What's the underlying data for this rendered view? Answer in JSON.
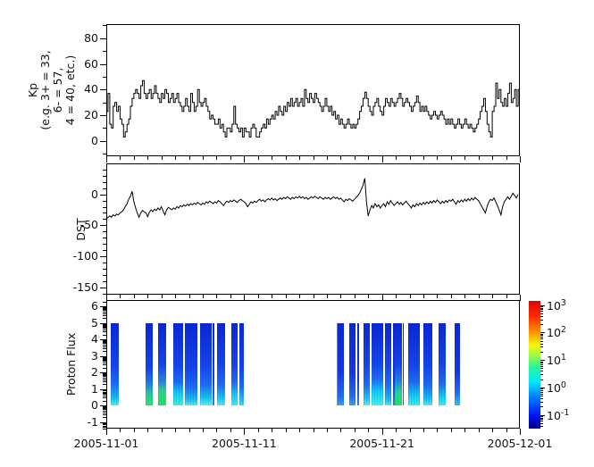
{
  "xaxis": {
    "tick_days": [
      0,
      10,
      20,
      30
    ],
    "tick_labels": [
      "2005-11-01",
      "2005-11-11",
      "2005-11-21",
      "2005-12-01"
    ]
  },
  "colorbar": {
    "scale": "log",
    "base": "10",
    "tick_exponents": [
      3,
      2,
      1,
      0,
      -1
    ],
    "lim_exponents": [
      -1.5,
      3.15
    ],
    "gradient": [
      [
        "0%",
        "#000088"
      ],
      [
        "10%",
        "#0013f0"
      ],
      [
        "24%",
        "#0078ff"
      ],
      [
        "37%",
        "#00eaff"
      ],
      [
        "48%",
        "#2cf598"
      ],
      [
        "57%",
        "#97fb47"
      ],
      [
        "65%",
        "#f2f907"
      ],
      [
        "76%",
        "#ff9000"
      ],
      [
        "88%",
        "#ff2a00"
      ],
      [
        "100%",
        "#e00000"
      ]
    ]
  },
  "chart_data": [
    {
      "id": "kp",
      "type": "step",
      "ylabel": "Kp\n(e.g. 3+ = 33,\n6- = 57,\n4 = 40, etc.)",
      "ylim": [
        -12,
        91
      ],
      "yticks": [
        0,
        20,
        40,
        60,
        80
      ],
      "yminor_step": 10,
      "xlim_days": [
        0,
        30
      ],
      "dt_days": 0.125,
      "values": [
        23,
        37,
        13,
        10,
        27,
        30,
        23,
        27,
        17,
        13,
        3,
        7,
        13,
        17,
        27,
        33,
        37,
        40,
        37,
        33,
        43,
        47,
        37,
        33,
        37,
        40,
        33,
        37,
        43,
        37,
        33,
        30,
        37,
        33,
        40,
        37,
        30,
        33,
        37,
        30,
        33,
        37,
        30,
        27,
        23,
        27,
        33,
        27,
        23,
        37,
        30,
        23,
        27,
        40,
        30,
        27,
        30,
        33,
        27,
        23,
        17,
        20,
        17,
        13,
        13,
        17,
        10,
        13,
        7,
        3,
        10,
        10,
        7,
        13,
        27,
        13,
        10,
        7,
        10,
        3,
        10,
        7,
        7,
        3,
        10,
        13,
        10,
        3,
        3,
        7,
        10,
        13,
        10,
        17,
        13,
        17,
        20,
        17,
        23,
        20,
        27,
        23,
        20,
        27,
        23,
        30,
        27,
        33,
        27,
        30,
        33,
        27,
        30,
        33,
        27,
        40,
        33,
        30,
        37,
        33,
        30,
        37,
        33,
        30,
        27,
        23,
        27,
        33,
        27,
        23,
        27,
        20,
        23,
        17,
        20,
        13,
        17,
        13,
        10,
        13,
        17,
        13,
        10,
        13,
        10,
        13,
        17,
        23,
        27,
        33,
        38,
        33,
        27,
        23,
        20,
        27,
        30,
        33,
        27,
        23,
        20,
        27,
        33,
        30,
        27,
        33,
        30,
        27,
        30,
        33,
        37,
        33,
        27,
        30,
        33,
        30,
        27,
        23,
        27,
        30,
        35,
        30,
        23,
        27,
        23,
        27,
        23,
        20,
        17,
        20,
        23,
        20,
        17,
        20,
        23,
        20,
        17,
        13,
        17,
        13,
        17,
        13,
        10,
        13,
        17,
        13,
        10,
        13,
        17,
        13,
        10,
        13,
        10,
        7,
        10,
        13,
        17,
        23,
        27,
        33,
        23,
        13,
        7,
        3,
        23,
        27,
        45,
        33,
        40,
        30,
        27,
        33,
        27,
        37,
        45,
        30,
        33,
        40,
        27,
        40
      ]
    },
    {
      "id": "dst",
      "type": "line",
      "ylabel": "DST",
      "ylim": [
        -162,
        50
      ],
      "yticks": [
        0,
        -50,
        -100,
        -150
      ],
      "yminor_step": 10,
      "xlim_days": [
        0,
        30
      ],
      "dt_days": 0.125,
      "values": [
        -40,
        -37,
        -35,
        -37,
        -33,
        -35,
        -32,
        -33,
        -30,
        -28,
        -25,
        -20,
        -15,
        -8,
        -3,
        5,
        -12,
        -22,
        -30,
        -37,
        -30,
        -26,
        -28,
        -30,
        -36,
        -29,
        -25,
        -28,
        -24,
        -26,
        -22,
        -25,
        -20,
        -27,
        -33,
        -25,
        -21,
        -23,
        -25,
        -22,
        -24,
        -20,
        -22,
        -18,
        -20,
        -17,
        -19,
        -16,
        -18,
        -15,
        -17,
        -14,
        -16,
        -13,
        -15,
        -17,
        -14,
        -16,
        -12,
        -14,
        -11,
        -13,
        -15,
        -12,
        -14,
        -10,
        -12,
        -15,
        -18,
        -14,
        -11,
        -13,
        -10,
        -12,
        -9,
        -11,
        -13,
        -10,
        -8,
        -10,
        -12,
        -15,
        -20,
        -16,
        -12,
        -14,
        -11,
        -13,
        -10,
        -8,
        -11,
        -9,
        -12,
        -9,
        -7,
        -9,
        -6,
        -9,
        -7,
        -10,
        -8,
        -6,
        -8,
        -5,
        -7,
        -4,
        -6,
        -8,
        -5,
        -7,
        -4,
        -6,
        -3,
        -6,
        -4,
        -7,
        -5,
        -8,
        -6,
        -4,
        -6,
        -3,
        -5,
        -7,
        -4,
        -6,
        -8,
        -5,
        -7,
        -5,
        -8,
        -6,
        -4,
        -7,
        -5,
        -8,
        -6,
        -9,
        -12,
        -8,
        -10,
        -7,
        -9,
        -11,
        -8,
        -5,
        -2,
        2,
        8,
        15,
        26,
        -12,
        -35,
        -25,
        -18,
        -22,
        -15,
        -20,
        -17,
        -22,
        -18,
        -15,
        -20,
        -12,
        -16,
        -10,
        -14,
        -18,
        -15,
        -12,
        -16,
        -13,
        -17,
        -14,
        -11,
        -15,
        -18,
        -22,
        -17,
        -20,
        -15,
        -18,
        -14,
        -17,
        -13,
        -16,
        -12,
        -15,
        -11,
        -14,
        -10,
        -13,
        -9,
        -12,
        -15,
        -11,
        -14,
        -10,
        -13,
        -9,
        -11,
        -8,
        -12,
        -16,
        -10,
        -13,
        -9,
        -12,
        -8,
        -11,
        -7,
        -10,
        -6,
        -9,
        -5,
        -8,
        -10,
        -15,
        -20,
        -25,
        -30,
        -20,
        -12,
        -8,
        -10,
        -6,
        -12,
        -18,
        -25,
        -33,
        -20,
        -12,
        -8,
        -4,
        -8,
        -3,
        2,
        -2,
        -6,
        0
      ]
    },
    {
      "id": "proton",
      "type": "bars",
      "ylabel": "Proton Flux",
      "ylim": [
        -1.4,
        6.4
      ],
      "yticks": [
        -1,
        0,
        1,
        2,
        3,
        4,
        5,
        6
      ],
      "yminor": "log",
      "xlim_days": [
        0,
        30
      ],
      "bar_top": 5,
      "bar_bottom": 0,
      "bars": [
        {
          "d0": 0.32,
          "d1": 0.91,
          "stops": [
            [
              0,
              "#0a28d8"
            ],
            [
              0.5,
              "#1545ec"
            ],
            [
              0.74,
              "#1e6ef5"
            ],
            [
              0.9,
              "#17b8f0"
            ],
            [
              1,
              "#55eef2"
            ]
          ]
        },
        {
          "d0": 2.87,
          "d1": 3.35,
          "stops": [
            [
              0,
              "#0a28d8"
            ],
            [
              0.55,
              "#1545ec"
            ],
            [
              0.74,
              "#2580e8"
            ],
            [
              0.85,
              "#25c9a5"
            ],
            [
              1,
              "#2ae963"
            ]
          ]
        },
        {
          "d0": 3.78,
          "d1": 4.32,
          "stops": [
            [
              0,
              "#0a28d8"
            ],
            [
              0.5,
              "#1545ec"
            ],
            [
              0.72,
              "#2d8ae0"
            ],
            [
              0.82,
              "#30d58a"
            ],
            [
              1,
              "#1ee858"
            ]
          ]
        },
        {
          "d0": 4.86,
          "d1": 5.57,
          "stops": [
            [
              0,
              "#0a28d8"
            ],
            [
              0.5,
              "#1545ec"
            ],
            [
              0.72,
              "#1e6ef5"
            ],
            [
              0.85,
              "#12cdf2"
            ],
            [
              1,
              "#45f0d8"
            ]
          ]
        },
        {
          "d0": 5.72,
          "d1": 6.59,
          "stops": [
            [
              0,
              "#0a28d8"
            ],
            [
              0.55,
              "#1545ec"
            ],
            [
              0.78,
              "#1e6ef5"
            ],
            [
              0.92,
              "#17b8f0"
            ],
            [
              1,
              "#55eef2"
            ]
          ]
        },
        {
          "d0": 6.8,
          "d1": 7.67,
          "stops": [
            [
              0,
              "#0a28d8"
            ],
            [
              0.5,
              "#1545ec"
            ],
            [
              0.75,
              "#1e6ef5"
            ],
            [
              0.9,
              "#14c2f2"
            ],
            [
              1,
              "#60f2f5"
            ]
          ]
        },
        {
          "d0": 7.73,
          "d1": 7.8,
          "stops": [
            [
              0,
              "#0a28d8"
            ],
            [
              0.7,
              "#1545ec"
            ],
            [
              1,
              "#2d8ae0"
            ]
          ]
        },
        {
          "d0": 8.03,
          "d1": 8.6,
          "stops": [
            [
              0,
              "#0a28d8"
            ],
            [
              0.5,
              "#1545ec"
            ],
            [
              0.75,
              "#1e6ef5"
            ],
            [
              0.9,
              "#14c2f2"
            ],
            [
              1,
              "#55eef2"
            ]
          ]
        },
        {
          "d0": 9.07,
          "d1": 9.51,
          "stops": [
            [
              0,
              "#0a28d8"
            ],
            [
              0.5,
              "#1545ec"
            ],
            [
              0.72,
              "#1e6ef5"
            ],
            [
              0.86,
              "#10c8f5"
            ],
            [
              1,
              "#3cf3ef"
            ]
          ]
        },
        {
          "d0": 9.67,
          "d1": 9.98,
          "stops": [
            [
              0,
              "#0a28d8"
            ],
            [
              0.55,
              "#1545ec"
            ],
            [
              0.78,
              "#1e6ef5"
            ],
            [
              1,
              "#3adef2"
            ]
          ]
        },
        {
          "d0": 16.7,
          "d1": 16.79,
          "stops": [
            [
              0,
              "#12d525"
            ],
            [
              1,
              "#2ae963"
            ]
          ]
        },
        {
          "d0": 16.79,
          "d1": 17.24,
          "stops": [
            [
              0,
              "#0a28d8"
            ],
            [
              0.6,
              "#1239e8"
            ],
            [
              0.9,
              "#2470f0"
            ],
            [
              1,
              "#35a8f5"
            ]
          ]
        },
        {
          "d0": 17.6,
          "d1": 18.1,
          "stops": [
            [
              0,
              "#0a28d8"
            ],
            [
              0.6,
              "#1239e8"
            ],
            [
              0.9,
              "#2470f0"
            ],
            [
              1,
              "#35a8f5"
            ]
          ]
        },
        {
          "d0": 18.23,
          "d1": 18.31,
          "stops": [
            [
              0,
              "#0a28d8"
            ],
            [
              0.7,
              "#1239e8"
            ],
            [
              1,
              "#2d8ae0"
            ]
          ]
        },
        {
          "d0": 18.66,
          "d1": 19.11,
          "stops": [
            [
              0,
              "#0a28d8"
            ],
            [
              0.5,
              "#1545ec"
            ],
            [
              0.75,
              "#1e6ef5"
            ],
            [
              0.9,
              "#14c2f2"
            ],
            [
              1,
              "#55eef2"
            ]
          ]
        },
        {
          "d0": 19.25,
          "d1": 20.1,
          "stops": [
            [
              0,
              "#0a28d8"
            ],
            [
              0.48,
              "#1545ec"
            ],
            [
              0.68,
              "#1e6ef5"
            ],
            [
              0.84,
              "#0fd2f7"
            ],
            [
              1,
              "#46f5ee"
            ]
          ]
        },
        {
          "d0": 20.2,
          "d1": 20.7,
          "stops": [
            [
              0,
              "#0a28d8"
            ],
            [
              0.5,
              "#1545ec"
            ],
            [
              0.75,
              "#1e6ef5"
            ],
            [
              0.92,
              "#17b8f0"
            ],
            [
              1,
              "#50ecf2"
            ]
          ]
        },
        {
          "d0": 20.8,
          "d1": 20.88,
          "stops": [
            [
              0,
              "#0a28d8"
            ],
            [
              0.7,
              "#1239e8"
            ],
            [
              1,
              "#2d8ae0"
            ]
          ]
        },
        {
          "d0": 20.93,
          "d1": 21.45,
          "stops": [
            [
              0,
              "#0a28d8"
            ],
            [
              0.5,
              "#1545ec"
            ],
            [
              0.7,
              "#2580e8"
            ],
            [
              0.84,
              "#22d5a0"
            ],
            [
              1,
              "#23ea5e"
            ]
          ]
        },
        {
          "d0": 21.5,
          "d1": 21.58,
          "stops": [
            [
              0,
              "#0a28d8"
            ],
            [
              0.7,
              "#1239e8"
            ],
            [
              1,
              "#2d8ae0"
            ]
          ]
        },
        {
          "d0": 21.9,
          "d1": 22.75,
          "stops": [
            [
              0,
              "#0a28d8"
            ],
            [
              0.5,
              "#1545ec"
            ],
            [
              0.72,
              "#1e6ef5"
            ],
            [
              0.87,
              "#10c8f5"
            ],
            [
              1,
              "#3cf3ef"
            ]
          ]
        },
        {
          "d0": 23.0,
          "d1": 23.65,
          "stops": [
            [
              0,
              "#0a28d8"
            ],
            [
              0.52,
              "#1545ec"
            ],
            [
              0.76,
              "#1e6ef5"
            ],
            [
              0.92,
              "#14c2f2"
            ],
            [
              1,
              "#58eff3"
            ]
          ]
        },
        {
          "d0": 24.1,
          "d1": 24.6,
          "stops": [
            [
              0,
              "#0a28d8"
            ],
            [
              0.5,
              "#1545ec"
            ],
            [
              0.74,
              "#1e6ef5"
            ],
            [
              0.88,
              "#10c8f5"
            ],
            [
              1,
              "#3cf3ef"
            ]
          ]
        },
        {
          "d0": 25.27,
          "d1": 25.66,
          "stops": [
            [
              0,
              "#0a28d8"
            ],
            [
              0.6,
              "#1239e8"
            ],
            [
              0.85,
              "#2470f0"
            ],
            [
              1,
              "#30c8f0"
            ]
          ]
        }
      ]
    }
  ]
}
